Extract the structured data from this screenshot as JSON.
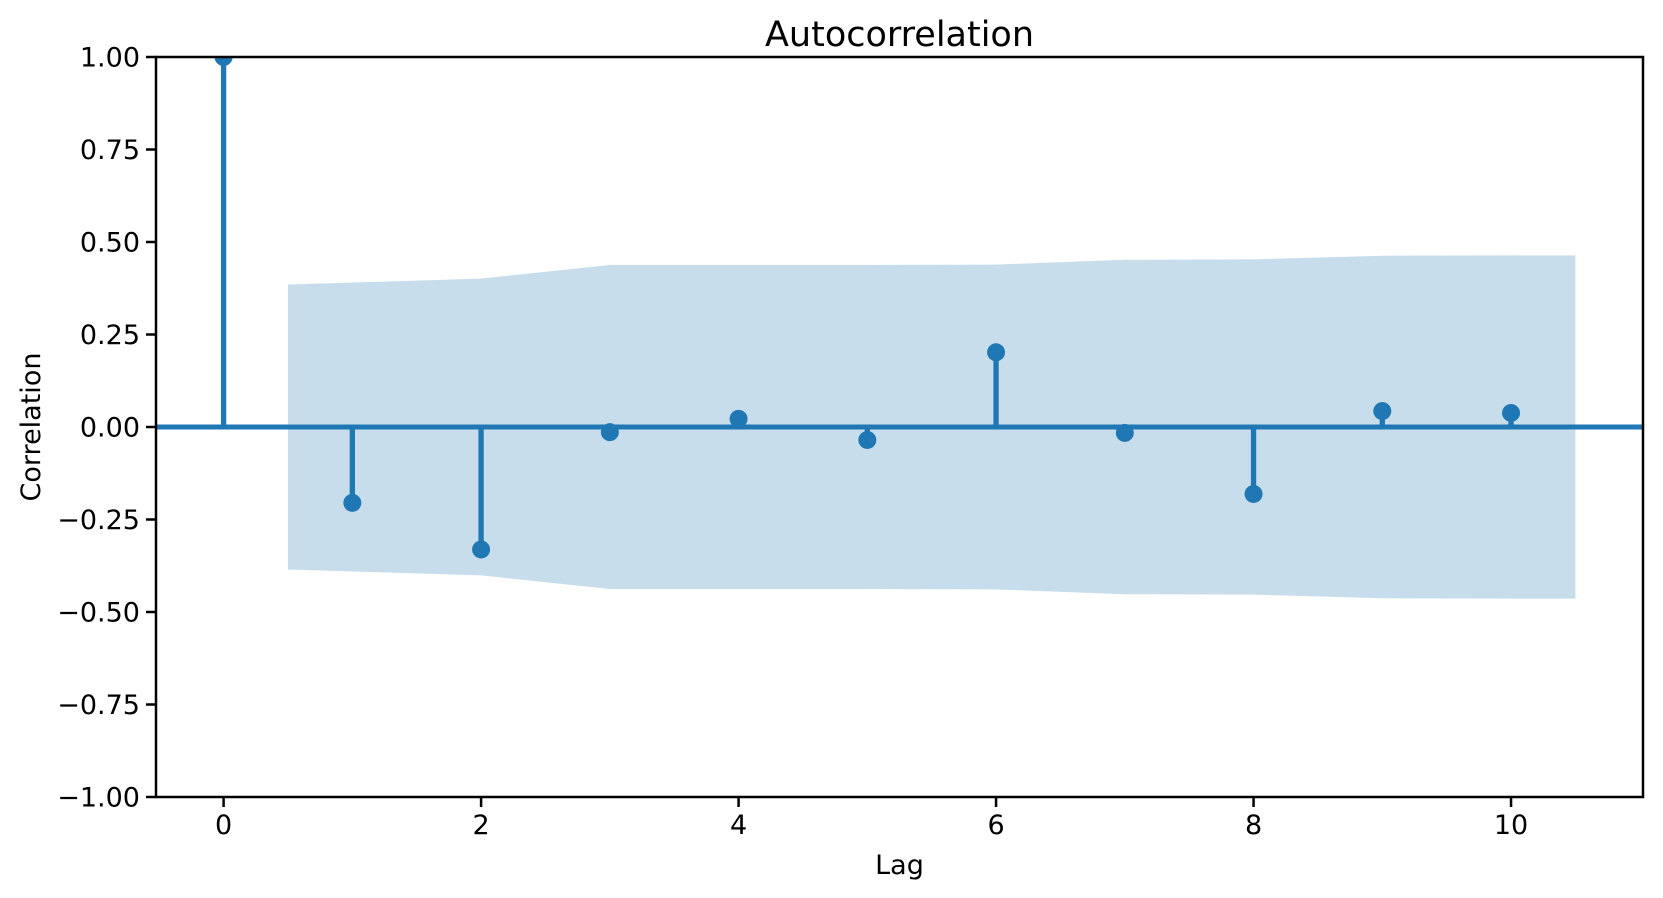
{
  "chart_data": {
    "type": "stem",
    "title": "Autocorrelation",
    "xlabel": "Lag",
    "ylabel": "Correlation",
    "x": [
      0,
      1,
      2,
      3,
      4,
      5,
      6,
      7,
      8,
      9,
      10
    ],
    "y": [
      1.0,
      -0.205,
      -0.331,
      -0.014,
      0.022,
      -0.035,
      0.202,
      -0.016,
      -0.181,
      0.043,
      0.038
    ],
    "confidence_band": {
      "x": [
        0.5,
        2,
        3,
        4,
        5,
        6,
        7,
        8,
        9,
        10.5
      ],
      "upper": [
        0.385,
        0.401,
        0.438,
        0.438,
        0.438,
        0.439,
        0.452,
        0.453,
        0.463,
        0.464
      ],
      "lower": [
        -0.385,
        -0.401,
        -0.438,
        -0.438,
        -0.438,
        -0.439,
        -0.452,
        -0.453,
        -0.463,
        -0.464
      ]
    },
    "zero_line": 0.0,
    "xlim": [
      -0.525,
      11.025
    ],
    "ylim": [
      -1.0,
      1.0
    ],
    "xticks": [
      0,
      2,
      4,
      6,
      8,
      10
    ],
    "xtick_labels": [
      "0",
      "2",
      "4",
      "6",
      "8",
      "10"
    ],
    "yticks": [
      1.0,
      0.75,
      0.5,
      0.25,
      0.0,
      -0.25,
      -0.5,
      -0.75,
      -1.0
    ],
    "ytick_labels": [
      "1.00",
      "0.75",
      "0.50",
      "0.25",
      "0.00",
      "−0.25",
      "−0.50",
      "−0.75",
      "−1.00"
    ],
    "grid": false,
    "legend": null,
    "colors": {
      "stem": "#1f77b4",
      "marker": "#1f77b4",
      "zero_line": "#1f77b4",
      "band": "#1f77b4",
      "band_opacity": 0.25,
      "spine": "#000000",
      "text": "#000000",
      "background": "#ffffff"
    }
  }
}
